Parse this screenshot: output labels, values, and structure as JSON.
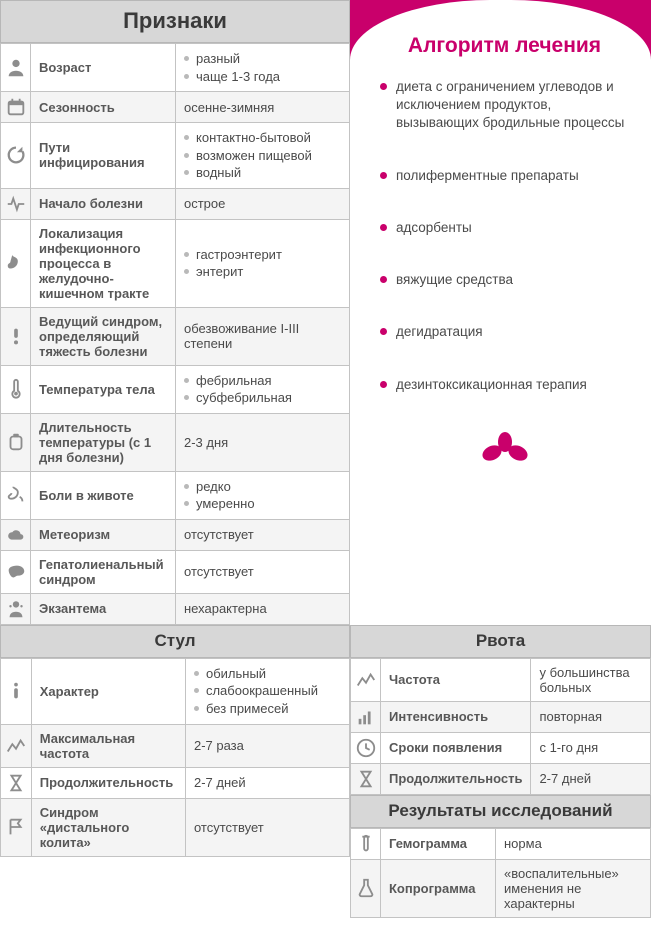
{
  "colors": {
    "accent": "#c9006b",
    "header_bg": "#d7d7d7",
    "border": "#c3c3c3",
    "text": "#4a4a4a",
    "alt_row": "#f4f4f4"
  },
  "signs": {
    "title": "Признаки",
    "rows": [
      {
        "icon": "person",
        "label": "Возраст",
        "values": [
          "разный",
          "чаще 1-3 года"
        ]
      },
      {
        "icon": "calendar",
        "label": "Сезонность",
        "values": [
          "осенне-зимняя"
        ]
      },
      {
        "icon": "refresh",
        "label": "Пути инфицирования",
        "values": [
          "контактно-бытовой",
          "возможен пищевой",
          "водный"
        ]
      },
      {
        "icon": "pulse",
        "label": "Начало болезни",
        "values": [
          "острое"
        ]
      },
      {
        "icon": "stomach",
        "label": "Локализация инфекционного процесса в желудочно-кишечном тракте",
        "values": [
          "гастроэнтерит",
          "энтерит"
        ]
      },
      {
        "icon": "exclaim",
        "label": "Ведущий синдром, определяющий тяжесть болезни",
        "values": [
          "обезвоживание I-III степени"
        ]
      },
      {
        "icon": "thermo",
        "label": "Температура тела",
        "values": [
          "фебрильная",
          "субфебрильная"
        ]
      },
      {
        "icon": "badge",
        "label": "Длительность температуры (с 1 дня болезни)",
        "values": [
          "2-3 дня"
        ]
      },
      {
        "icon": "stomach2",
        "label": "Боли в животе",
        "values": [
          "редко",
          "умеренно"
        ]
      },
      {
        "icon": "cloud",
        "label": "Метеоризм",
        "values": [
          "отсутствует"
        ]
      },
      {
        "icon": "liver",
        "label": "Гепатолиенальный синдром",
        "values": [
          "отсутствует"
        ]
      },
      {
        "icon": "person2",
        "label": "Экзантема",
        "values": [
          "нехарактерна"
        ]
      }
    ]
  },
  "algo": {
    "title": "Алгоритм лечения",
    "items": [
      "диета с ограничением углеводов и исключением продуктов, вызывающих бродильные процессы",
      "полиферментные препараты",
      "адсорбенты",
      "вяжущие средства",
      "дегидратация",
      "дезинтоксикационная терапия"
    ]
  },
  "stool": {
    "title": "Стул",
    "rows": [
      {
        "icon": "info",
        "label": "Характер",
        "values": [
          "обильный",
          "слабоокрашенный",
          "без примесей"
        ]
      },
      {
        "icon": "chart",
        "label": "Максимальная частота",
        "values": [
          "2-7 раза"
        ]
      },
      {
        "icon": "hourglass",
        "label": "Продолжительность",
        "values": [
          "2-7 дней"
        ]
      },
      {
        "icon": "flag",
        "label": "Синдром «дистального колита»",
        "values": [
          "отсутствует"
        ]
      }
    ]
  },
  "vomit": {
    "title": "Рвота",
    "rows": [
      {
        "icon": "chart",
        "label": "Частота",
        "values": [
          "у большинства больных"
        ]
      },
      {
        "icon": "bars",
        "label": "Интенсивность",
        "values": [
          "повторная"
        ]
      },
      {
        "icon": "clock",
        "label": "Сроки появления",
        "values": [
          "с 1-го дня"
        ]
      },
      {
        "icon": "hourglass",
        "label": "Продолжительность",
        "values": [
          "2-7 дней"
        ]
      }
    ]
  },
  "results": {
    "title": "Результаты исследований",
    "rows": [
      {
        "icon": "tube",
        "label": "Гемограмма",
        "values": [
          "норма"
        ]
      },
      {
        "icon": "flask",
        "label": "Копрограмма",
        "values": [
          "«воспалительные» именения не характерны"
        ]
      }
    ]
  }
}
